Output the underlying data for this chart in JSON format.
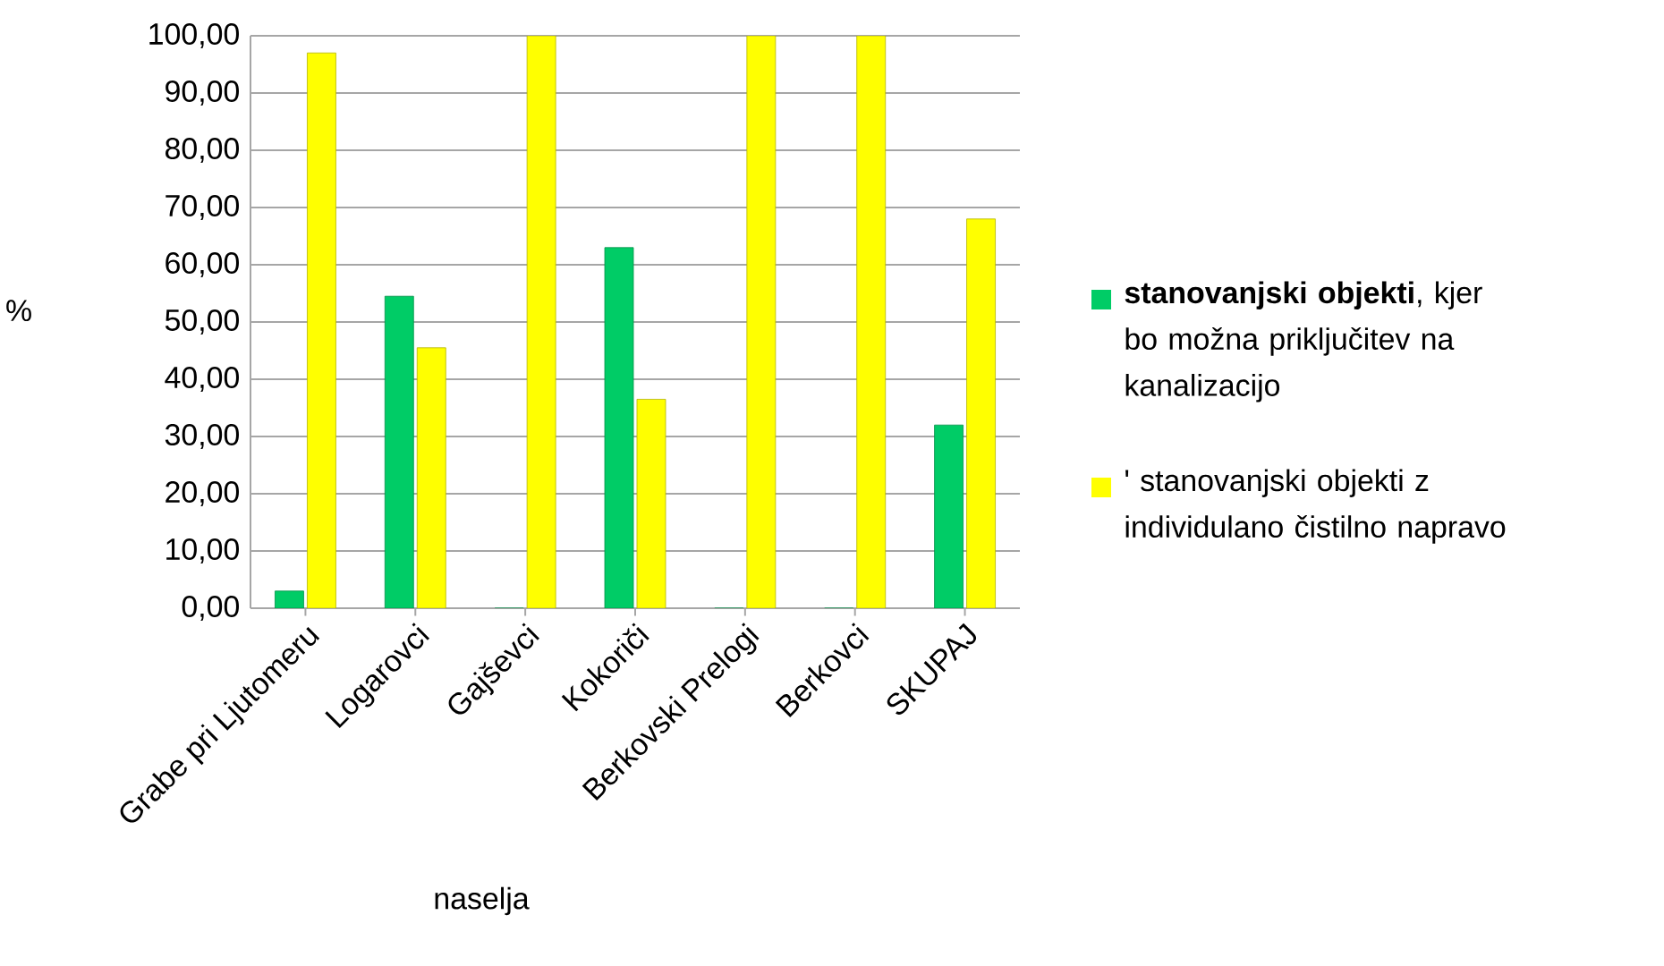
{
  "chart_data": {
    "type": "bar",
    "xlabel": "naselja",
    "ylabel": "%",
    "categories": [
      "Grabe pri Ljutomeru",
      "Logarovci",
      "Gajševci",
      "Kokoriči",
      "Berkovski Prelogi",
      "Berkovci",
      "SKUPAJ"
    ],
    "series": [
      {
        "name": "**stanovanjski objekti**, kjer bo možna priključitev na kanalizacijo",
        "color": "#00cc66",
        "values": [
          3,
          54.5,
          0,
          63,
          0,
          0,
          32
        ]
      },
      {
        "name": "' stanovanjski objekti z individulano čistilno napravo",
        "color": "#ffff00",
        "values": [
          97,
          45.5,
          100,
          36.5,
          100,
          100,
          68
        ]
      }
    ],
    "ylim": [
      0,
      100
    ],
    "yticks": [
      {
        "value": 0,
        "label": "0,00"
      },
      {
        "value": 10,
        "label": "10,00"
      },
      {
        "value": 20,
        "label": "20,00"
      },
      {
        "value": 30,
        "label": "30,00"
      },
      {
        "value": 40,
        "label": "40,00"
      },
      {
        "value": 50,
        "label": "50,00"
      },
      {
        "value": 60,
        "label": "60,00"
      },
      {
        "value": 70,
        "label": "70,00"
      },
      {
        "value": 80,
        "label": "80,00"
      },
      {
        "value": 90,
        "label": "90,00"
      },
      {
        "value": 100,
        "label": "100,00"
      }
    ],
    "grid": "y",
    "legend": "right"
  }
}
